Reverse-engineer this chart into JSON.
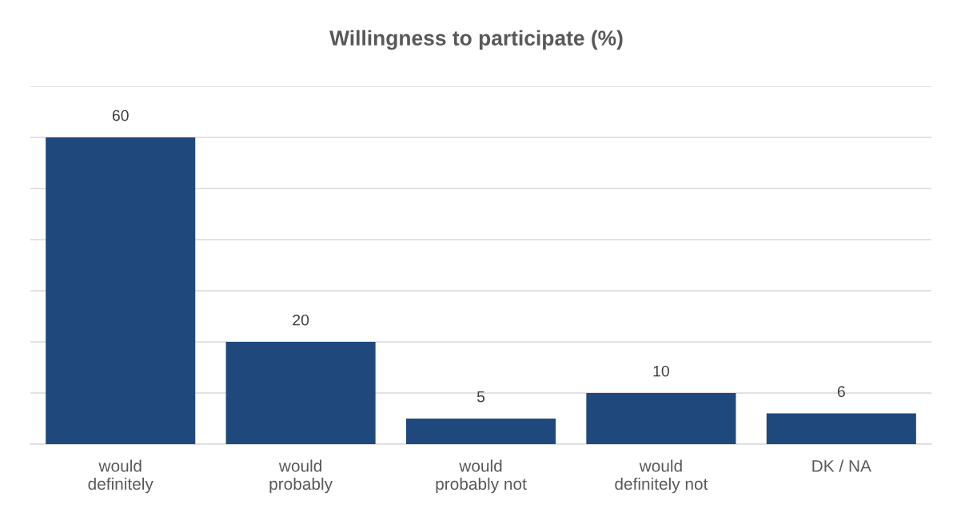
{
  "chart_data": {
    "type": "bar",
    "title": "Willingness to participate (%)",
    "categories": [
      "would\ndefinitely",
      "would\nprobably",
      "would\nprobably not",
      "would\ndefinitely not",
      "DK / NA"
    ],
    "values": [
      60,
      20,
      5,
      10,
      6
    ],
    "color": "#1f497d",
    "ylim": [
      0,
      70
    ],
    "yticks": [
      {
        "value": 0,
        "label": null
      },
      {
        "value": 10,
        "label": null
      },
      {
        "value": 20,
        "label": null
      },
      {
        "value": 30,
        "label": null
      },
      {
        "value": 40,
        "label": null
      },
      {
        "value": 50,
        "label": null
      },
      {
        "value": 60,
        "label": null
      },
      {
        "value": 70,
        "label": null
      }
    ],
    "tick_labels": "x",
    "grid": "y",
    "data_labels": true
  }
}
